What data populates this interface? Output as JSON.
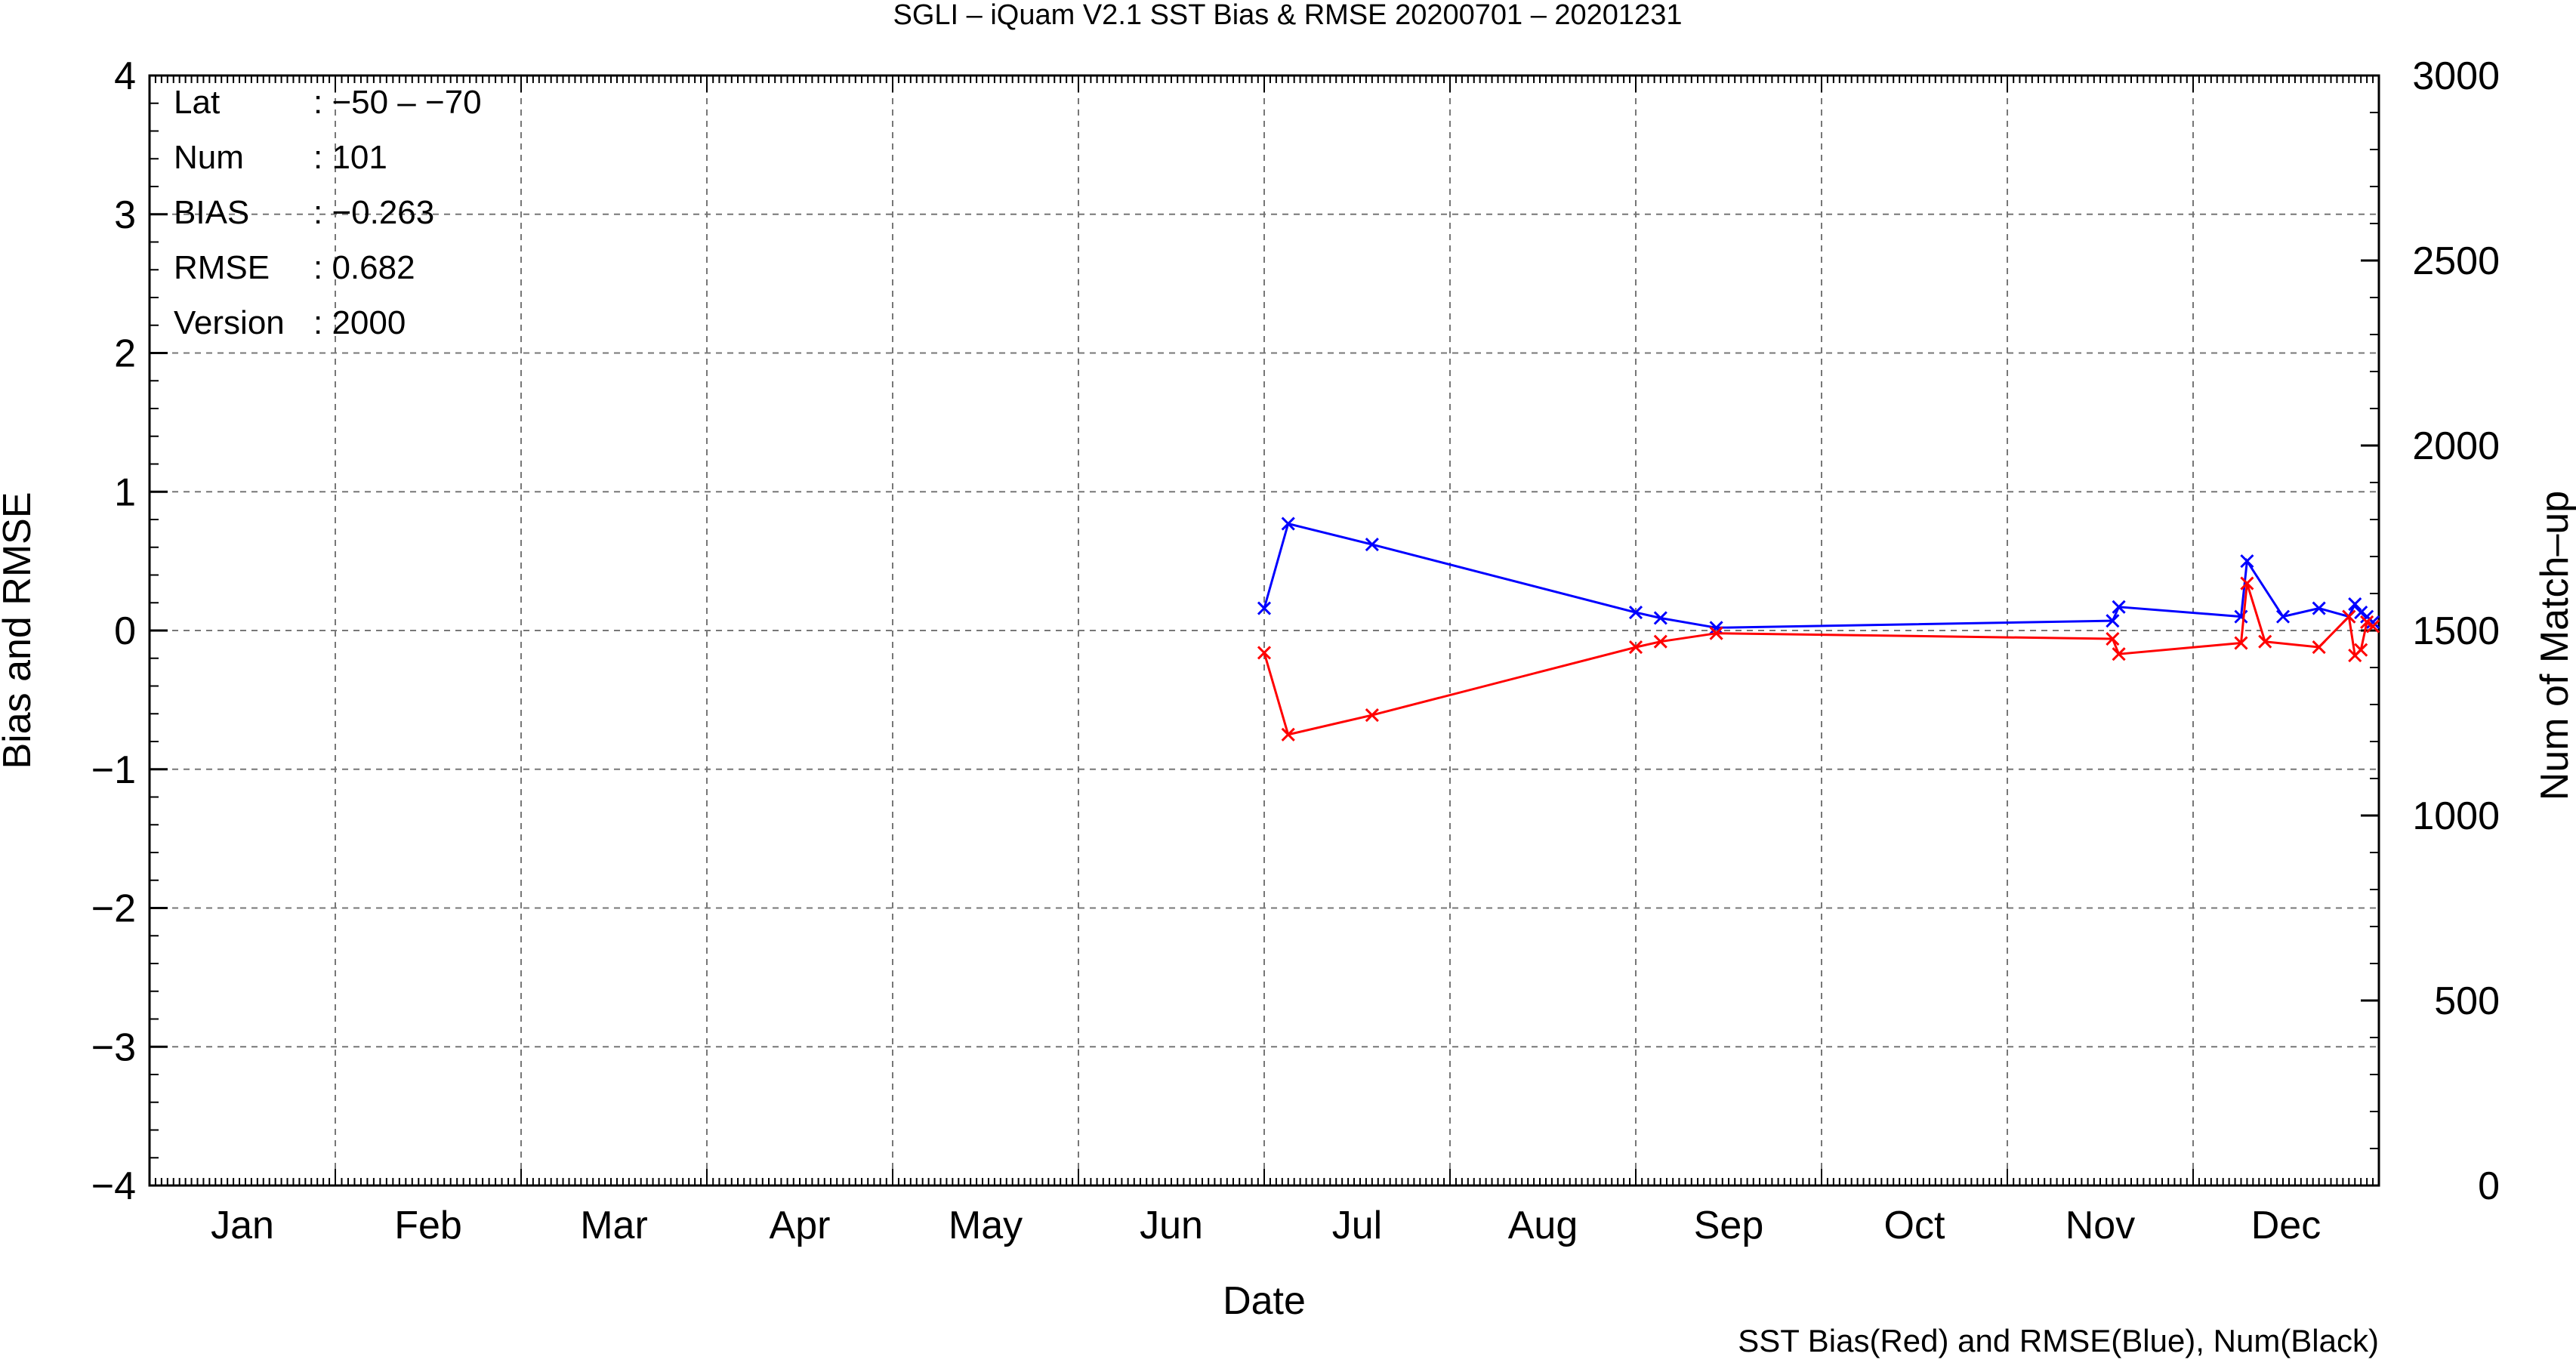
{
  "chart_data": {
    "type": "line",
    "title": "SGLI – iQuam V2.1 SST Bias & RMSE 20200701 – 20201231",
    "xlabel": "Date",
    "ylabel": "Bias and RMSE",
    "y2label": "Num of Match–up",
    "footer": "SST Bias(Red) and RMSE(Blue), Num(Black)",
    "x_range_months": [
      1,
      13
    ],
    "ylim": [
      -4,
      4
    ],
    "y2lim": [
      0,
      3000
    ],
    "grid": true,
    "month_ticks": [
      "Jan",
      "Feb",
      "Mar",
      "Apr",
      "May",
      "Jun",
      "Jul",
      "Aug",
      "Sep",
      "Oct",
      "Nov",
      "Dec"
    ],
    "y_ticks": [
      "−4",
      "−3",
      "−2",
      "−1",
      "0",
      "1",
      "2",
      "3",
      "4"
    ],
    "y2_ticks": [
      "0",
      "500",
      "1000",
      "1500",
      "2000",
      "2500",
      "3000"
    ],
    "info": [
      {
        "label": "Lat",
        "value": ": −50 – −70"
      },
      {
        "label": "Num",
        "value": ": 101"
      },
      {
        "label": "BIAS",
        "value": ": −0.263"
      },
      {
        "label": "RMSE",
        "value": ": 0.682"
      },
      {
        "label": "Version",
        "value": ": 2000"
      }
    ],
    "series": [
      {
        "name": "RMSE",
        "color": "#0000ff",
        "x": [
          "2020-07-01",
          "2020-07-05",
          "2020-07-19",
          "2020-09-01",
          "2020-09-05",
          "2020-09-14",
          "2020-11-18",
          "2020-11-19",
          "2020-12-09",
          "2020-12-10",
          "2020-12-16",
          "2020-12-22",
          "2020-12-27",
          "2020-12-28",
          "2020-12-29",
          "2020-12-30",
          "2020-12-31"
        ],
        "values": [
          0.16,
          0.77,
          0.62,
          0.13,
          0.09,
          0.02,
          0.07,
          0.17,
          0.1,
          0.5,
          0.1,
          0.16,
          0.1,
          0.19,
          0.13,
          0.1,
          0.06
        ]
      },
      {
        "name": "Bias",
        "color": "#ff0000",
        "x": [
          "2020-07-01",
          "2020-07-05",
          "2020-07-19",
          "2020-09-01",
          "2020-09-05",
          "2020-09-14",
          "2020-11-18",
          "2020-11-19",
          "2020-12-09",
          "2020-12-10",
          "2020-12-13",
          "2020-12-22",
          "2020-12-27",
          "2020-12-28",
          "2020-12-29",
          "2020-12-30",
          "2020-12-31"
        ],
        "values": [
          -0.16,
          -0.75,
          -0.61,
          -0.12,
          -0.08,
          -0.02,
          -0.06,
          -0.17,
          -0.09,
          0.34,
          -0.08,
          -0.12,
          0.1,
          -0.18,
          -0.14,
          0.06,
          0.03
        ]
      }
    ]
  }
}
